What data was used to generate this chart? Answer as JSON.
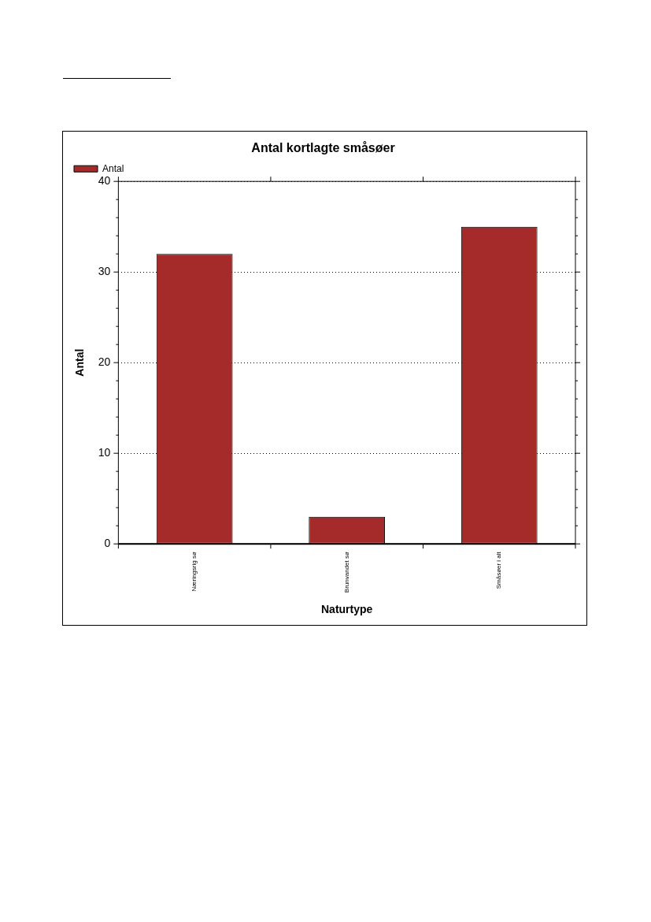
{
  "chart_data": {
    "type": "bar",
    "title": "Antal kortlagte småsøer",
    "xlabel": "Naturtype",
    "ylabel": "Antal",
    "categories": [
      "Næringsrig sø",
      "Brunvandet sø",
      "Småsøer i alt"
    ],
    "series": [
      {
        "name": "Antal",
        "color": "#a52a2a",
        "values": [
          32,
          3,
          35
        ]
      }
    ],
    "ylim": [
      0,
      40
    ],
    "yticks": [
      0,
      10,
      20,
      30,
      40
    ],
    "grid": "y",
    "legend": "top left"
  }
}
